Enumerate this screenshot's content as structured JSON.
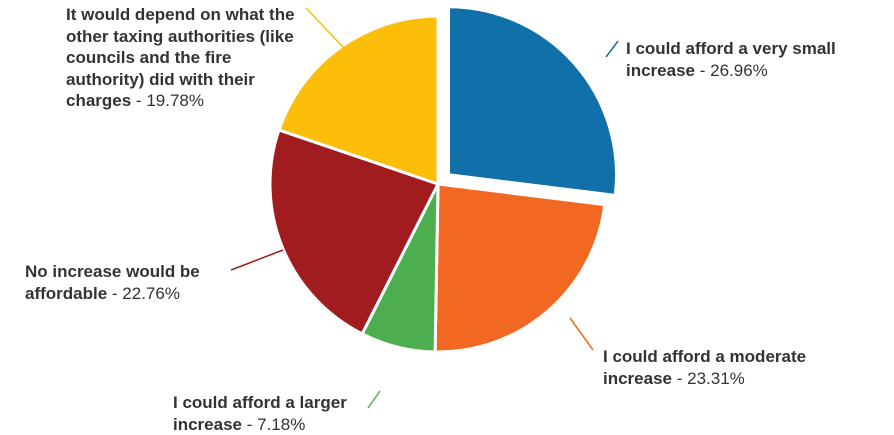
{
  "chart_data": {
    "type": "pie",
    "slices": [
      {
        "label": "I could afford a very small increase",
        "value": 26.96,
        "value_label": "26.96%",
        "color": "#1170aa",
        "exploded": true
      },
      {
        "label": "I could afford a moderate increase",
        "value": 23.31,
        "value_label": "23.31%",
        "color": "#f26822"
      },
      {
        "label": "I could afford a larger increase",
        "value": 7.18,
        "value_label": "7.18%",
        "color": "#4cae4f"
      },
      {
        "label": "No increase would be affordable",
        "value": 22.76,
        "value_label": "22.76%",
        "color": "#a01c1e"
      },
      {
        "label": "It would depend on what the other taxing authorities (like councils and the fire authority) did with their charges",
        "value": 19.78,
        "value_label": "19.78%",
        "color": "#fcbe08"
      }
    ],
    "start_angle_deg": 0,
    "direction": "clockwise",
    "legend": "none",
    "title": ""
  }
}
